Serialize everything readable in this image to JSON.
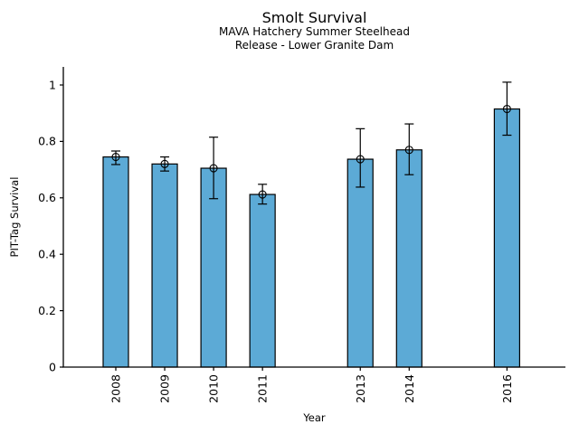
{
  "chart_data": {
    "type": "bar",
    "title": "Smolt Survival",
    "subtitle_line1": "MAVA Hatchery Summer Steelhead",
    "subtitle_line2": "Release - Lower Granite Dam",
    "xlabel": "Year",
    "ylabel": "PIT-Tag Survival",
    "categories": [
      "2008",
      "2009",
      "2010",
      "2011",
      "2013",
      "2014",
      "2016"
    ],
    "points": [
      {
        "year": 2008,
        "value": 0.745,
        "err_low": 0.718,
        "err_high": 0.766
      },
      {
        "year": 2009,
        "value": 0.72,
        "err_low": 0.695,
        "err_high": 0.745
      },
      {
        "year": 2010,
        "value": 0.705,
        "err_low": 0.597,
        "err_high": 0.815
      },
      {
        "year": 2011,
        "value": 0.612,
        "err_low": 0.578,
        "err_high": 0.648
      },
      {
        "year": 2013,
        "value": 0.737,
        "err_low": 0.638,
        "err_high": 0.845
      },
      {
        "year": 2014,
        "value": 0.77,
        "err_low": 0.682,
        "err_high": 0.862
      },
      {
        "year": 2016,
        "value": 0.915,
        "err_low": 0.822,
        "err_high": 1.01
      }
    ],
    "missing_years": [
      2012,
      2015
    ],
    "yticks": [
      0,
      0.2,
      0.4,
      0.6,
      0.8,
      1
    ],
    "ytick_labels": [
      "0",
      "0.2",
      "0.4",
      "0.6",
      "0.8",
      "1"
    ],
    "ylim": [
      0,
      1.065
    ],
    "xlim_years": [
      2006.93,
      2017.2
    ],
    "grid": false,
    "legend": null,
    "error_bars": true,
    "marker": "open-circle",
    "bar_color": "#5CAAD6",
    "bar_edge_color": "#000000",
    "error_bar_color": "#000000",
    "background": "#FFFFFF"
  }
}
